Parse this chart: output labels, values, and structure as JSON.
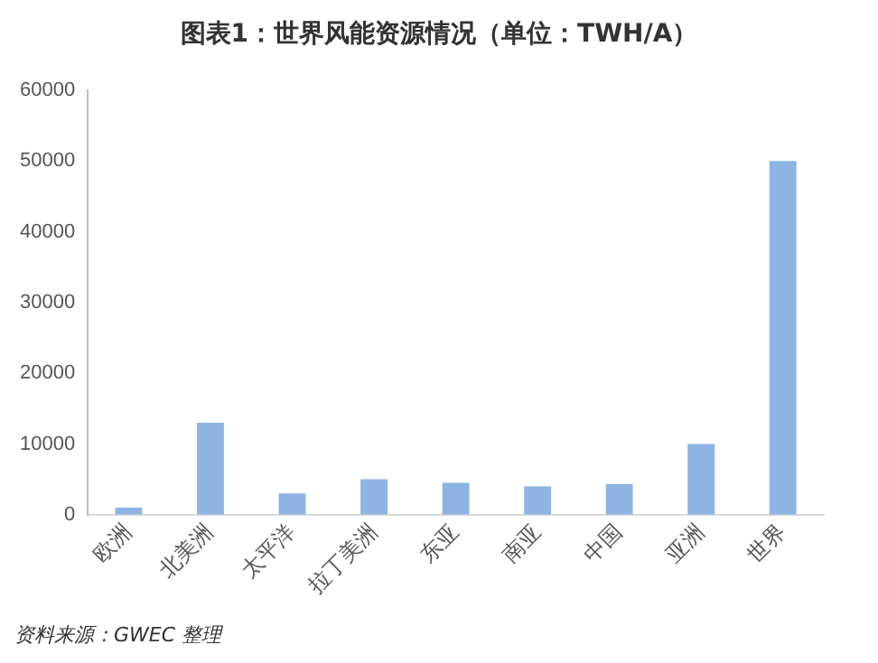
{
  "chart_data": {
    "type": "bar",
    "title": "图表1：世界风能资源情况（单位：TWH/A）",
    "categories": [
      "欧洲",
      "北美洲",
      "太平洋",
      "拉丁美洲",
      "东亚",
      "南亚",
      "中国",
      "亚洲",
      "世界"
    ],
    "values": [
      1000,
      13000,
      3000,
      5000,
      4500,
      4000,
      4300,
      10000,
      50000
    ],
    "color": "#8db4e2",
    "ylim": [
      0,
      60000
    ],
    "yticks": [
      0,
      10000,
      20000,
      30000,
      40000,
      50000,
      60000
    ],
    "grid": false,
    "annotations": [
      "资料来源：GWEC 整理"
    ]
  }
}
